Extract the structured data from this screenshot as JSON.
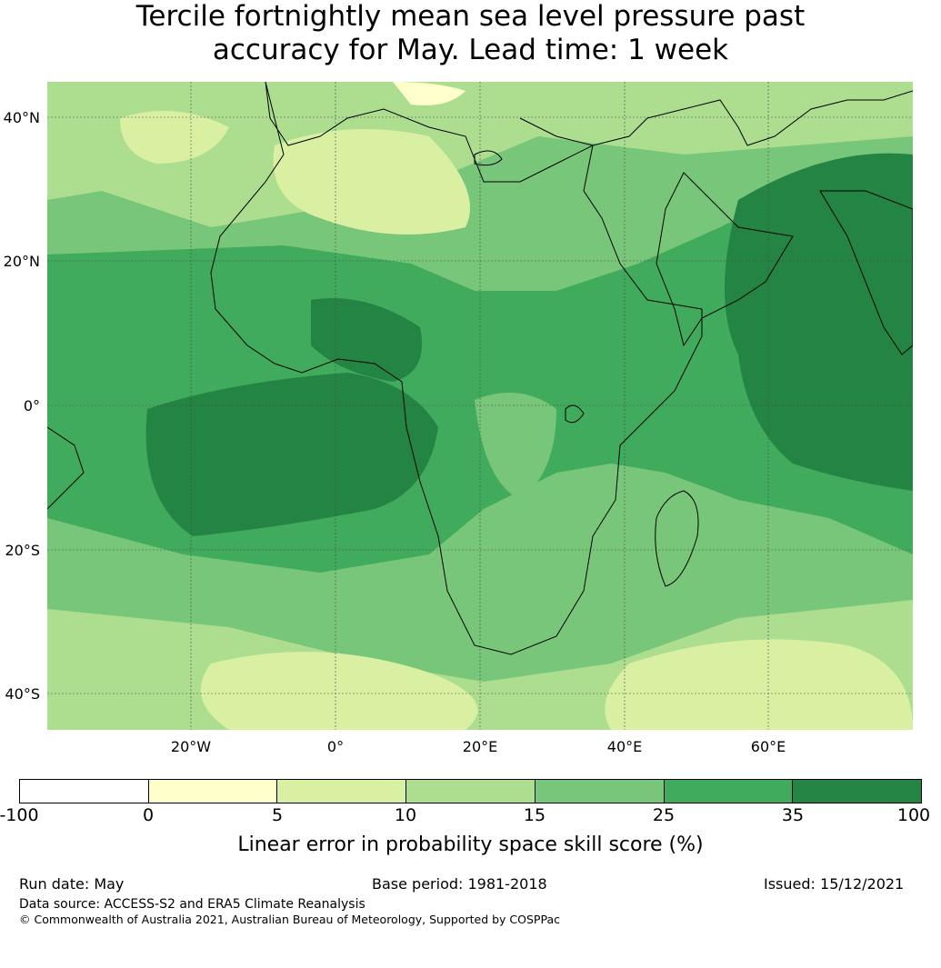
{
  "title": {
    "line1": "Tercile fortnightly mean sea level pressure past",
    "line2": "accuracy for May. Lead time: 1 week"
  },
  "map": {
    "lat_labels": [
      "40°N",
      "20°N",
      "0°",
      "20°S",
      "40°S"
    ],
    "lon_labels": [
      "20°W",
      "0°",
      "20°E",
      "40°E",
      "60°E"
    ]
  },
  "colorbar": {
    "ticks": [
      "-100",
      "0",
      "5",
      "10",
      "15",
      "25",
      "35",
      "100"
    ],
    "colors": [
      "#ffffff",
      "#ffffcc",
      "#d9f0a3",
      "#addd8e",
      "#78c679",
      "#41ab5d",
      "#238443"
    ],
    "label": "Linear error in probability space skill score (%)"
  },
  "footer": {
    "run_date": "Run date: May",
    "base_period": "Base period: 1981-2018",
    "issued": "Issued: 15/12/2021",
    "data_source": "Data source: ACCESS-S2 and ERA5 Climate Reanalysis",
    "copyright": "© Commonwealth of Australia 2021, Australian Bureau of Meteorology, Supported by COSPPac"
  }
}
